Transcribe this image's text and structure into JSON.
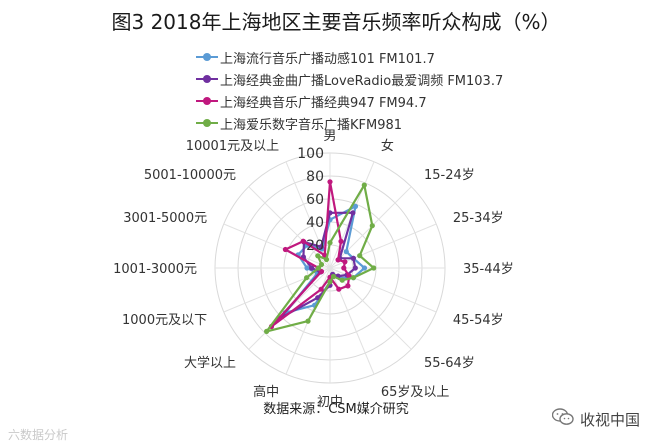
{
  "chart_data": {
    "type": "radar",
    "title": "图3 2018年上海地区主要音乐频率听众构成（%）",
    "categories": [
      "男",
      "女",
      "15-24岁",
      "25-34岁",
      "35-44岁",
      "45-54岁",
      "55-64岁",
      "65岁及以上",
      "初中",
      "高中",
      "大学以上",
      "1000元及以下",
      "1001-3000元",
      "3001-5000元",
      "5001-10000元",
      "10001元及以上"
    ],
    "rlim": [
      0,
      100
    ],
    "ticks": [
      0,
      20,
      40,
      60,
      80,
      100
    ],
    "tick_labels": [
      "20",
      "40",
      "60",
      "80",
      "100"
    ],
    "legend_position": "top",
    "series": [
      {
        "name": "上海流行音乐广播动感101 FM101.7",
        "color": "#5b9bd5",
        "values": [
          42,
          58,
          20,
          22,
          30,
          22,
          12,
          8,
          12,
          35,
          55,
          12,
          20,
          30,
          28,
          18
        ]
      },
      {
        "name": "上海经典金曲广播LoveRadio最爱调频 FM103.7",
        "color": "#7030a0",
        "values": [
          48,
          52,
          12,
          22,
          22,
          16,
          10,
          6,
          15,
          28,
          62,
          9,
          16,
          25,
          32,
          20
        ]
      },
      {
        "name": "上海经典音乐广播经典947 FM94.7",
        "color": "#c0187e",
        "values": [
          75,
          25,
          10,
          14,
          12,
          18,
          22,
          20,
          8,
          20,
          72,
          8,
          10,
          42,
          33,
          12
        ]
      },
      {
        "name": "上海爱乐数字音乐广播KFM981",
        "color": "#70ad47",
        "values": [
          22,
          78,
          52,
          28,
          38,
          22,
          15,
          8,
          12,
          50,
          78,
          22,
          10,
          8,
          15,
          8
        ]
      }
    ]
  },
  "source_text": "数据来源：CSM媒介研究",
  "watermark_left": "六数据分析",
  "watermark_right": "收视中国",
  "watermark_icon": "wechat-icon"
}
